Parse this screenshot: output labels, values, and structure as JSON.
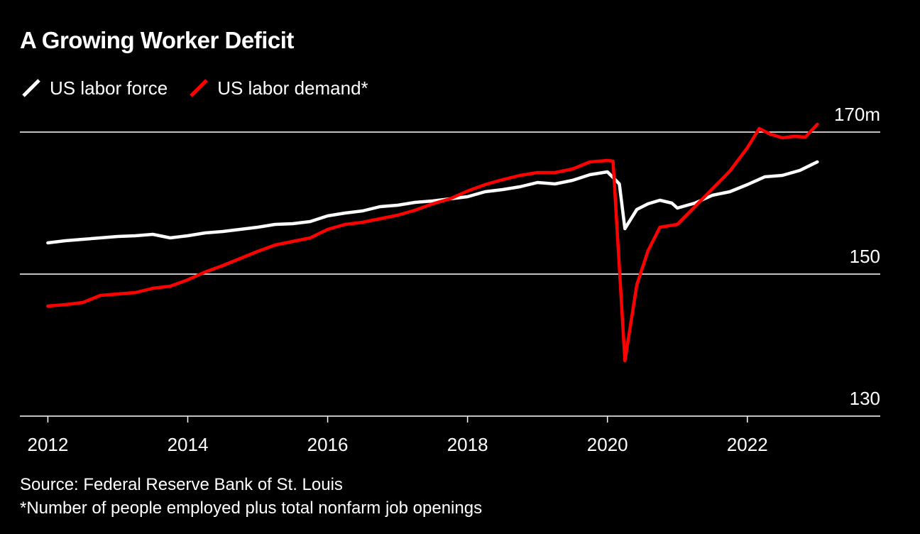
{
  "colors": {
    "background": "#000000",
    "labor_force": "#ffffff",
    "labor_demand": "#ff0000",
    "grid": "#ffffff"
  },
  "title": "A Growing Worker Deficit",
  "legend": [
    {
      "label": "US labor force",
      "color": "#ffffff",
      "icon": "line-slash-icon"
    },
    {
      "label": "US labor demand*",
      "color": "#ff0000",
      "icon": "line-slash-icon"
    }
  ],
  "footer": {
    "source": "Source: Federal Reserve Bank of St. Louis",
    "note": "*Number of people employed plus total nonfarm job openings"
  },
  "chart_data": {
    "type": "line",
    "title": "A Growing Worker Deficit",
    "xlabel": "",
    "ylabel": "",
    "x_ticks": [
      2012,
      2014,
      2016,
      2018,
      2020,
      2022
    ],
    "x_tick_labels": [
      "2012",
      "2014",
      "2016",
      "2018",
      "2020",
      "2022"
    ],
    "y_ticks": [
      130,
      150,
      170
    ],
    "y_tick_labels": [
      "130",
      "150",
      "170m"
    ],
    "xlim": [
      2011.6,
      2023.9
    ],
    "ylim": [
      130,
      170
    ],
    "grid": "horizontal",
    "legend_position": "top-left",
    "series": [
      {
        "name": "US labor force",
        "color": "#ffffff",
        "points": [
          [
            2012.0,
            154.4
          ],
          [
            2012.25,
            154.7
          ],
          [
            2012.5,
            154.9
          ],
          [
            2012.75,
            155.1
          ],
          [
            2013.0,
            155.3
          ],
          [
            2013.25,
            155.4
          ],
          [
            2013.5,
            155.6
          ],
          [
            2013.75,
            155.1
          ],
          [
            2014.0,
            155.4
          ],
          [
            2014.25,
            155.8
          ],
          [
            2014.5,
            156.0
          ],
          [
            2014.75,
            156.3
          ],
          [
            2015.0,
            156.6
          ],
          [
            2015.25,
            157.0
          ],
          [
            2015.5,
            157.1
          ],
          [
            2015.75,
            157.4
          ],
          [
            2016.0,
            158.2
          ],
          [
            2016.25,
            158.6
          ],
          [
            2016.5,
            158.9
          ],
          [
            2016.75,
            159.5
          ],
          [
            2017.0,
            159.7
          ],
          [
            2017.25,
            160.1
          ],
          [
            2017.5,
            160.3
          ],
          [
            2017.75,
            160.6
          ],
          [
            2018.0,
            160.9
          ],
          [
            2018.25,
            161.6
          ],
          [
            2018.5,
            161.9
          ],
          [
            2018.75,
            162.3
          ],
          [
            2019.0,
            162.9
          ],
          [
            2019.25,
            162.7
          ],
          [
            2019.5,
            163.2
          ],
          [
            2019.75,
            164.0
          ],
          [
            2020.0,
            164.4
          ],
          [
            2020.17,
            162.7
          ],
          [
            2020.25,
            156.4
          ],
          [
            2020.42,
            159.1
          ],
          [
            2020.58,
            159.9
          ],
          [
            2020.75,
            160.4
          ],
          [
            2020.92,
            160.0
          ],
          [
            2021.0,
            159.3
          ],
          [
            2021.25,
            160.0
          ],
          [
            2021.5,
            161.1
          ],
          [
            2021.75,
            161.6
          ],
          [
            2022.0,
            162.6
          ],
          [
            2022.25,
            163.7
          ],
          [
            2022.5,
            163.9
          ],
          [
            2022.75,
            164.6
          ],
          [
            2023.0,
            165.8
          ]
        ]
      },
      {
        "name": "US labor demand*",
        "color": "#ff0000",
        "points": [
          [
            2012.0,
            145.5
          ],
          [
            2012.25,
            145.7
          ],
          [
            2012.5,
            146.0
          ],
          [
            2012.75,
            147.0
          ],
          [
            2013.0,
            147.2
          ],
          [
            2013.25,
            147.4
          ],
          [
            2013.5,
            148.0
          ],
          [
            2013.75,
            148.3
          ],
          [
            2014.0,
            149.2
          ],
          [
            2014.25,
            150.3
          ],
          [
            2014.5,
            151.2
          ],
          [
            2014.75,
            152.2
          ],
          [
            2015.0,
            153.2
          ],
          [
            2015.25,
            154.1
          ],
          [
            2015.5,
            154.6
          ],
          [
            2015.75,
            155.1
          ],
          [
            2016.0,
            156.3
          ],
          [
            2016.25,
            157.0
          ],
          [
            2016.5,
            157.3
          ],
          [
            2016.75,
            157.8
          ],
          [
            2017.0,
            158.3
          ],
          [
            2017.25,
            159.0
          ],
          [
            2017.5,
            159.9
          ],
          [
            2017.75,
            160.6
          ],
          [
            2018.0,
            161.7
          ],
          [
            2018.25,
            162.6
          ],
          [
            2018.5,
            163.3
          ],
          [
            2018.75,
            163.9
          ],
          [
            2019.0,
            164.3
          ],
          [
            2019.25,
            164.3
          ],
          [
            2019.5,
            164.8
          ],
          [
            2019.75,
            165.8
          ],
          [
            2020.0,
            166.0
          ],
          [
            2020.08,
            165.9
          ],
          [
            2020.25,
            137.8
          ],
          [
            2020.42,
            148.5
          ],
          [
            2020.58,
            153.3
          ],
          [
            2020.75,
            156.6
          ],
          [
            2021.0,
            157.0
          ],
          [
            2021.25,
            159.5
          ],
          [
            2021.5,
            162.0
          ],
          [
            2021.75,
            164.5
          ],
          [
            2022.0,
            167.8
          ],
          [
            2022.17,
            170.5
          ],
          [
            2022.33,
            169.7
          ],
          [
            2022.5,
            169.2
          ],
          [
            2022.67,
            169.4
          ],
          [
            2022.83,
            169.3
          ],
          [
            2023.0,
            171.1
          ]
        ]
      }
    ]
  }
}
